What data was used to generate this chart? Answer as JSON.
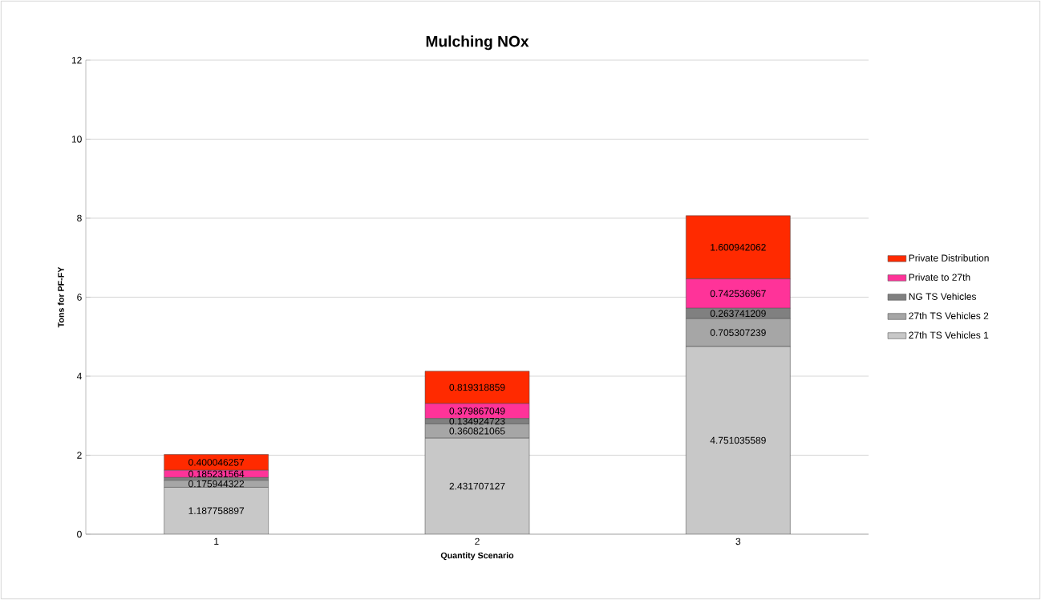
{
  "chart_data": {
    "type": "bar",
    "title": "Mulching NOx",
    "xlabel": "Quantity Scenario",
    "ylabel": "Tons for PF-FY",
    "categories": [
      "1",
      "2",
      "3"
    ],
    "stacked": true,
    "ylim": [
      0,
      12
    ],
    "yticks": [
      0,
      2,
      4,
      6,
      8,
      10,
      12
    ],
    "grid": "y",
    "legend": "right",
    "series": [
      {
        "name": "27th TS Vehicles 1",
        "color": "#c8c8c8",
        "values": [
          1.187758897,
          2.431707127,
          4.751035589
        ],
        "value_labels": [
          "1.187758897",
          "2.431707127",
          "4.751035589"
        ]
      },
      {
        "name": "27th TS Vehicles 2",
        "color": "#a6a6a6",
        "values": [
          0.175944322,
          0.360821065,
          0.705307239
        ],
        "value_labels": [
          "0.175944322",
          "0.360821065",
          "0.705307239"
        ]
      },
      {
        "name": "NG TS Vehicles",
        "color": "#808080",
        "values": [
          0.07,
          0.134924723,
          0.263741209
        ],
        "value_labels": [
          null,
          "0.134924723",
          "0.263741209"
        ]
      },
      {
        "name": "Private to 27th",
        "color": "#ff3399",
        "values": [
          0.185231564,
          0.379867049,
          0.742536967
        ],
        "value_labels": [
          "0.185231564",
          "0.379867049",
          "0.742536967"
        ]
      },
      {
        "name": "Private Distribution",
        "color": "#ff2a00",
        "values": [
          0.400046257,
          0.819318859,
          1.600942062
        ],
        "value_labels": [
          "0.400046257",
          "0.819318859",
          "1.600942062"
        ]
      }
    ]
  }
}
